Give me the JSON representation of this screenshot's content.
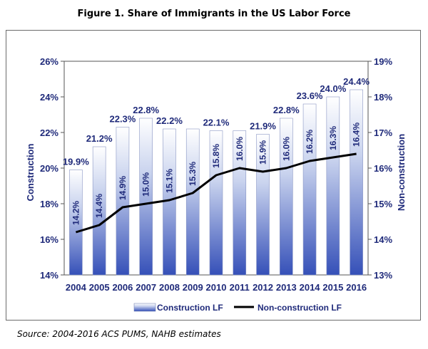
{
  "chart_data": {
    "type": "bar",
    "title": "Figure 1. Share of Immigrants in the US Labor Force",
    "categories": [
      "2004",
      "2005",
      "2006",
      "2007",
      "2008",
      "2009",
      "2010",
      "2011",
      "2012",
      "2013",
      "2014",
      "2015",
      "2016"
    ],
    "series": [
      {
        "name": "Construction LF",
        "type": "bar",
        "axis": "left",
        "values": [
          19.9,
          21.2,
          22.3,
          22.8,
          22.2,
          22.2,
          22.1,
          22.1,
          21.9,
          22.8,
          23.6,
          24.0,
          24.4
        ],
        "labels": [
          "19.9%",
          "21.2%",
          "22.3%",
          "22.8%",
          "22.2%",
          "",
          "22.1%",
          "",
          "21.9%",
          "22.8%",
          "23.6%",
          "24.0%",
          "24.4%"
        ],
        "color": "#3d5bbf"
      },
      {
        "name": "Non-construction LF",
        "type": "line",
        "axis": "right",
        "values": [
          14.2,
          14.4,
          14.9,
          15.0,
          15.1,
          15.3,
          15.8,
          16.0,
          15.9,
          16.0,
          16.2,
          16.3,
          16.4
        ],
        "labels": [
          "14.2%",
          "14.4%",
          "14.9%",
          "15.0%",
          "15.1%",
          "15.3%",
          "15.8%",
          "16.0%",
          "15.9%",
          "16.0%",
          "16.2%",
          "16.3%",
          "16.4%"
        ],
        "color": "#000000"
      }
    ],
    "ylabel_left": "Construction",
    "ylabel_right": "Non-construction",
    "ylim_left": [
      14,
      26
    ],
    "ylim_right": [
      13,
      19
    ],
    "yticks_left": [
      "14%",
      "16%",
      "18%",
      "20%",
      "22%",
      "24%",
      "26%"
    ],
    "yticks_right": [
      "13%",
      "14%",
      "15%",
      "16%",
      "17%",
      "18%",
      "19%"
    ],
    "grid": false,
    "legend": "bottom"
  },
  "source": "Source: 2004-2016 ACS PUMS, NAHB estimates"
}
